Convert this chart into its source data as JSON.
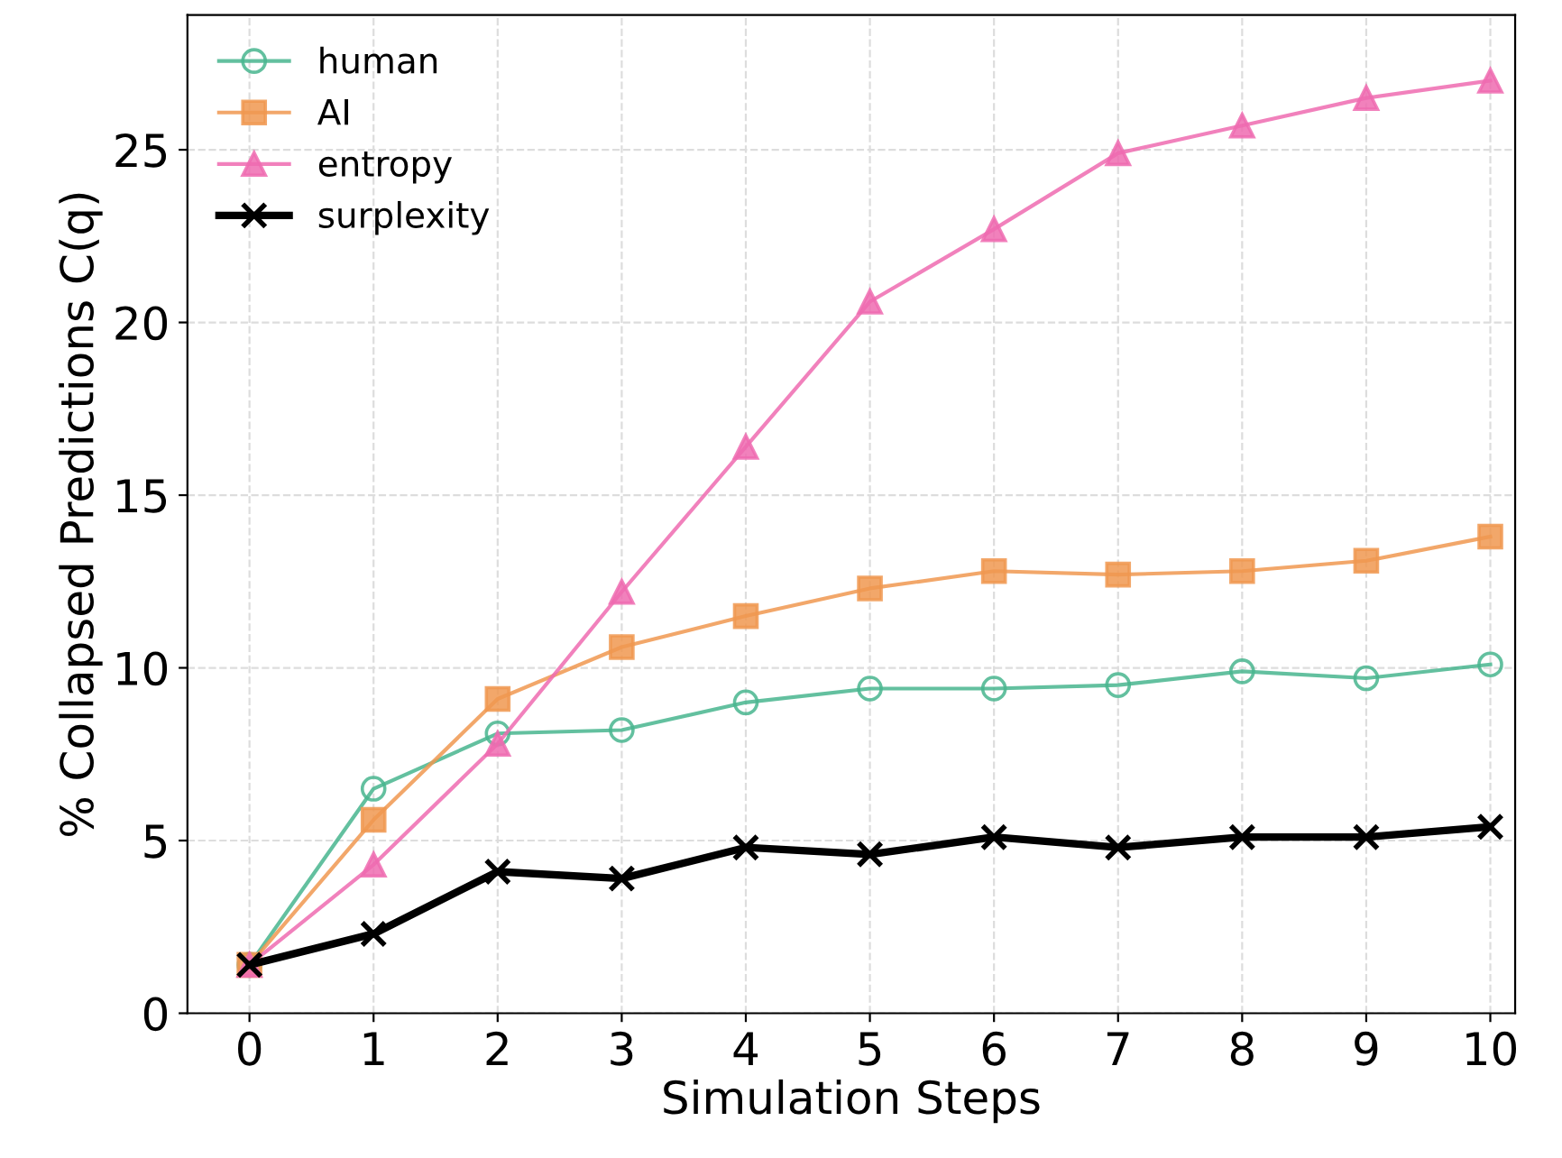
{
  "chart_data": {
    "type": "line",
    "xlabel": "Simulation Steps",
    "ylabel": "% Collapsed Predictions C(q)",
    "x": [
      0,
      1,
      2,
      3,
      4,
      5,
      6,
      7,
      8,
      9,
      10
    ],
    "series": [
      {
        "name": "human",
        "color": "#48b58e",
        "marker": "circle",
        "values": [
          1.4,
          6.5,
          8.1,
          8.2,
          9.0,
          9.4,
          9.4,
          9.5,
          9.9,
          9.7,
          10.1
        ]
      },
      {
        "name": "AI",
        "color": "#f09850",
        "marker": "square",
        "values": [
          1.4,
          5.6,
          9.1,
          10.6,
          11.5,
          12.3,
          12.8,
          12.7,
          12.8,
          13.1,
          13.8
        ]
      },
      {
        "name": "entropy",
        "color": "#ee6bb0",
        "marker": "triangle",
        "values": [
          1.4,
          4.3,
          7.8,
          12.2,
          16.4,
          20.6,
          22.7,
          24.9,
          25.7,
          26.5,
          27.0
        ]
      },
      {
        "name": "surplexity",
        "color": "#000000",
        "marker": "cross",
        "values": [
          1.4,
          2.3,
          4.1,
          3.9,
          4.8,
          4.6,
          5.1,
          4.8,
          5.1,
          5.1,
          5.4
        ]
      }
    ],
    "xlim": [
      -0.5,
      10.2
    ],
    "xticks": [
      0,
      1,
      2,
      3,
      4,
      5,
      6,
      7,
      8,
      9,
      10
    ],
    "ylim": [
      0,
      28.9
    ],
    "yticks": [
      0,
      5,
      10,
      15,
      20,
      25
    ],
    "grid": true,
    "legend": "top left",
    "line_style": "solid"
  }
}
